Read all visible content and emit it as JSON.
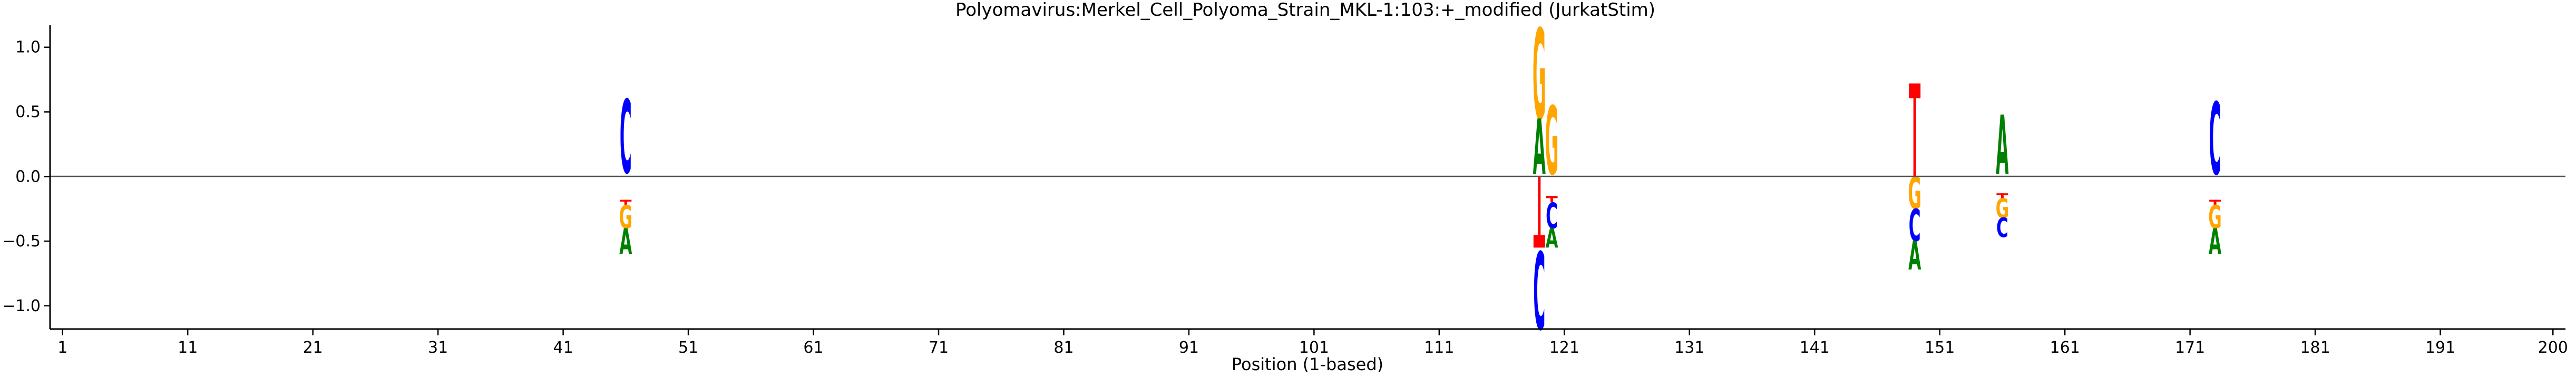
{
  "chart_data": {
    "type": "sequence-logo",
    "title": "Polyomavirus:Merkel_Cell_Polyoma_Strain_MKL-1:103:+_modified  (JurkatStim)",
    "xlabel": "Position (1-based)",
    "ylabel": "",
    "xlim": [
      0,
      201
    ],
    "ylim": [
      -1.18,
      1.17
    ],
    "xticks": [
      1,
      11,
      21,
      31,
      41,
      51,
      61,
      71,
      81,
      91,
      101,
      111,
      121,
      131,
      141,
      151,
      161,
      171,
      181,
      191,
      200
    ],
    "xtick_labels": [
      "1",
      "11",
      "21",
      "31",
      "41",
      "51",
      "61",
      "71",
      "81",
      "91",
      "101",
      "111",
      "121",
      "131",
      "141",
      "151",
      "161",
      "171",
      "181",
      "191",
      "200"
    ],
    "yticks": [
      -1.0,
      -0.5,
      0.0,
      0.5,
      1.0
    ],
    "ytick_labels": [
      "−1.0",
      "−0.5",
      "0.0",
      "0.5",
      "1.0"
    ],
    "baseline": 0,
    "base_colors": {
      "A": "#008000",
      "C": "#0000ff",
      "G": "#ffa500",
      "T": "#ff0000"
    },
    "columns": [
      {
        "position": 46,
        "stack": [
          {
            "base": "C",
            "from": 0.03,
            "to": 0.6
          },
          {
            "base": "T",
            "from": -0.22,
            "to": -0.18
          },
          {
            "base": "G",
            "from": -0.4,
            "to": -0.22
          },
          {
            "base": "A",
            "from": -0.6,
            "to": -0.4
          }
        ]
      },
      {
        "position": 119,
        "stack": [
          {
            "base": "G",
            "from": 0.45,
            "to": 1.15
          },
          {
            "base": "A",
            "from": 0.02,
            "to": 0.45
          },
          {
            "base": "T",
            "from": -0.55,
            "to": 0.0
          },
          {
            "base": "C",
            "from": -1.18,
            "to": -0.58
          }
        ]
      },
      {
        "position": 120,
        "stack": [
          {
            "base": "G",
            "from": 0.02,
            "to": 0.55
          },
          {
            "base": "T",
            "from": -0.2,
            "to": -0.15
          },
          {
            "base": "C",
            "from": -0.4,
            "to": -0.2
          },
          {
            "base": "A",
            "from": -0.55,
            "to": -0.4
          }
        ]
      },
      {
        "position": 149,
        "stack": [
          {
            "base": "T",
            "from": 0.0,
            "to": 0.72
          },
          {
            "base": "G",
            "from": -0.25,
            "to": 0.0
          },
          {
            "base": "C",
            "from": -0.5,
            "to": -0.25
          },
          {
            "base": "A",
            "from": -0.72,
            "to": -0.5
          }
        ]
      },
      {
        "position": 156,
        "stack": [
          {
            "base": "A",
            "from": 0.02,
            "to": 0.48
          },
          {
            "base": "T",
            "from": -0.17,
            "to": -0.13
          },
          {
            "base": "G",
            "from": -0.32,
            "to": -0.17
          },
          {
            "base": "C",
            "from": -0.47,
            "to": -0.32
          }
        ]
      },
      {
        "position": 173,
        "stack": [
          {
            "base": "C",
            "from": 0.02,
            "to": 0.58
          },
          {
            "base": "T",
            "from": -0.22,
            "to": -0.18
          },
          {
            "base": "G",
            "from": -0.4,
            "to": -0.22
          },
          {
            "base": "A",
            "from": -0.6,
            "to": -0.4
          }
        ]
      }
    ]
  }
}
